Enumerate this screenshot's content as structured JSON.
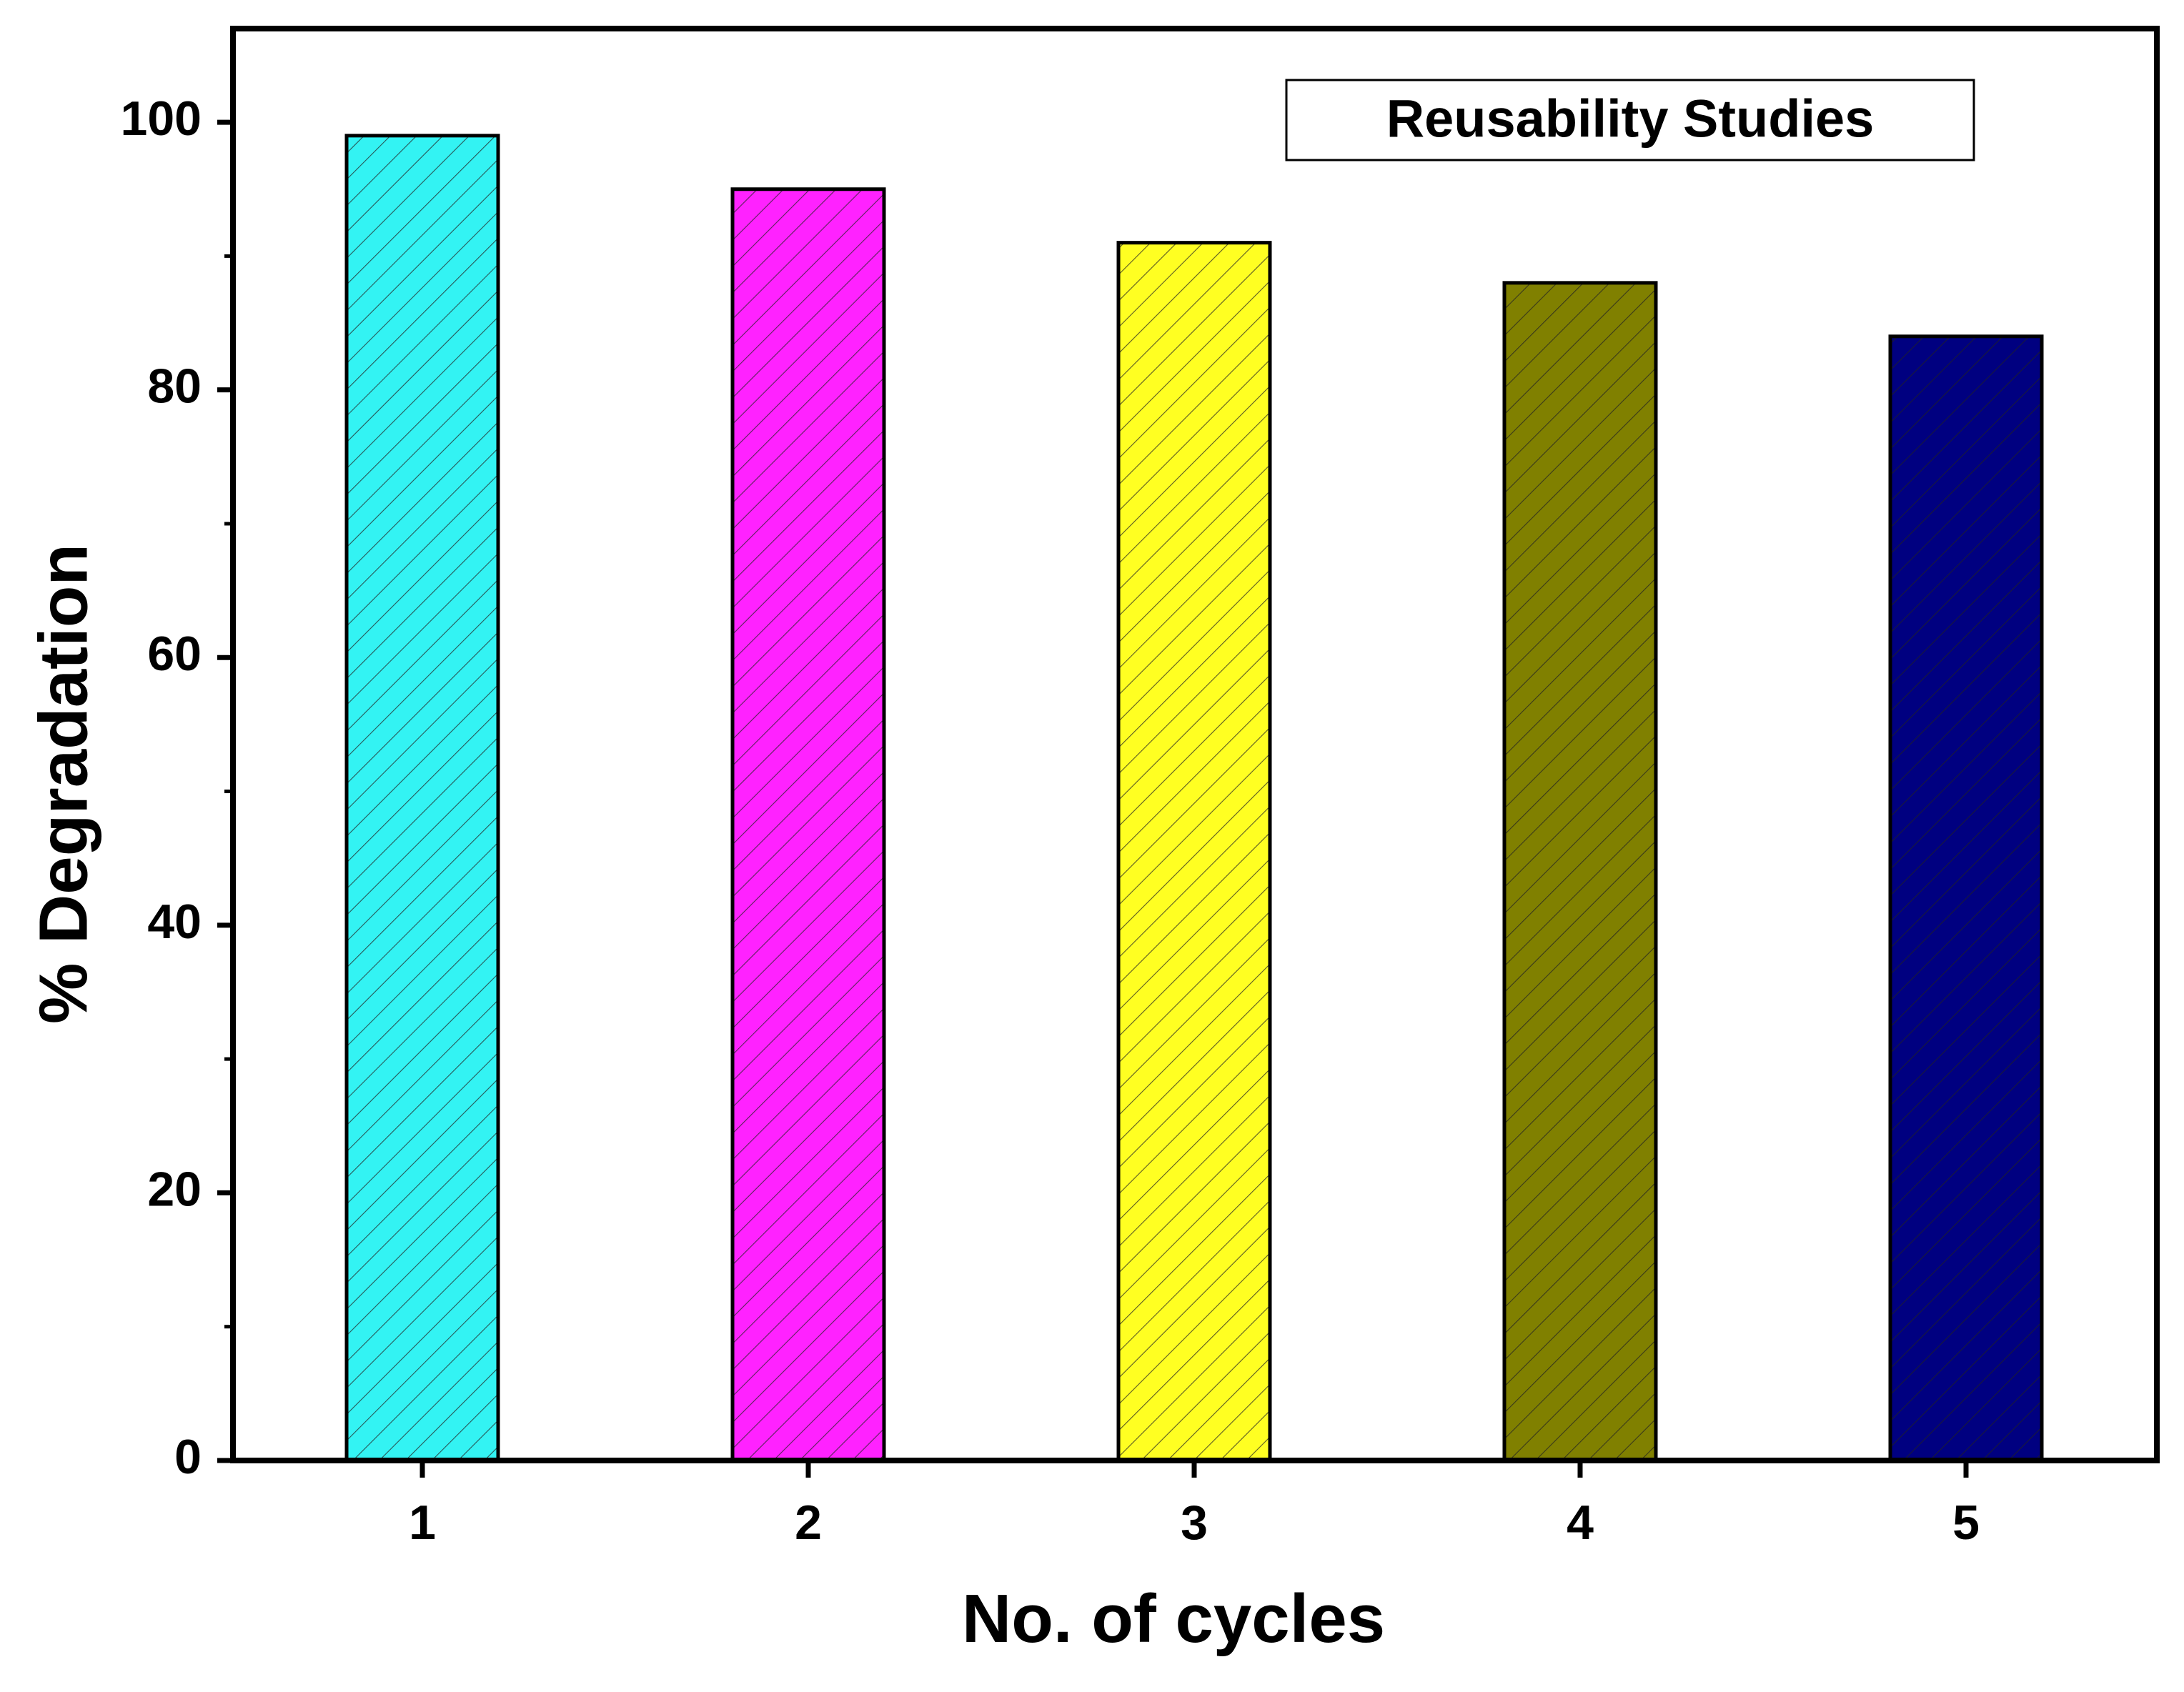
{
  "chart_data": {
    "type": "bar",
    "title": "",
    "xlabel": "No. of cycles",
    "ylabel": "% Degradation",
    "categories": [
      "1",
      "2",
      "3",
      "4",
      "5"
    ],
    "values": [
      99,
      95,
      91,
      88,
      84
    ],
    "ylim": [
      0,
      107
    ],
    "yticks": [
      0,
      20,
      40,
      60,
      80,
      100
    ],
    "ytick_labels": [
      "0",
      "20",
      "40",
      "60",
      "80",
      "100"
    ],
    "bar_colors": [
      "#33f3f3",
      "#ff22ff",
      "#ffff22",
      "#808000",
      "#000080"
    ],
    "bar_pattern": "diagonal-hatch",
    "legend": {
      "label": "Reusability Studies",
      "position": "top-right"
    },
    "grid": false
  }
}
